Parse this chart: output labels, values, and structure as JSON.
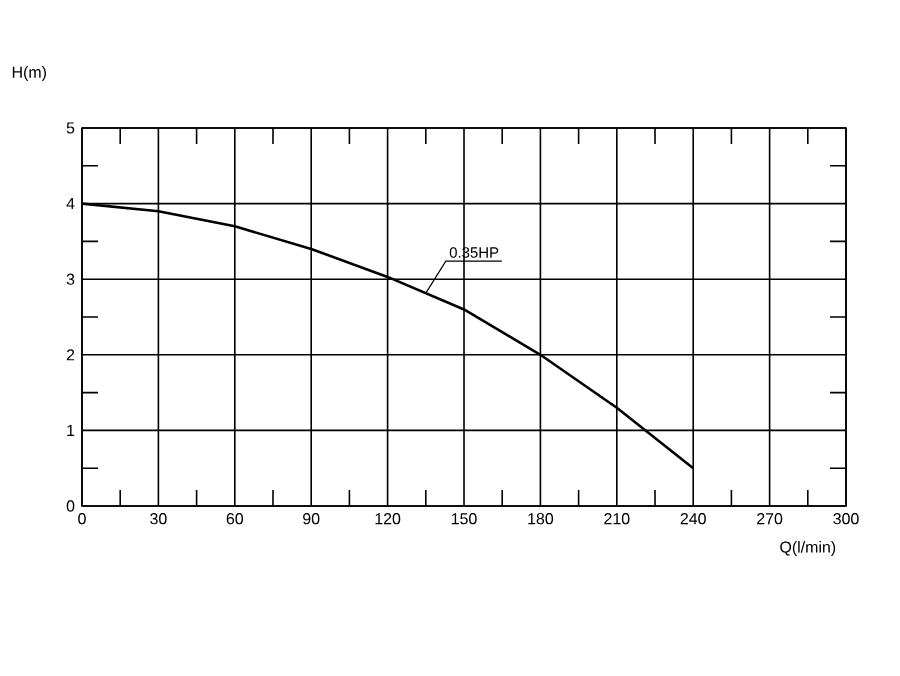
{
  "chart_data": {
    "type": "line",
    "xlabel": "Q(l/min)",
    "ylabel": "H(m)",
    "x": [
      0,
      30,
      60,
      90,
      120,
      150,
      180,
      210,
      240
    ],
    "series": [
      {
        "name": "0.35HP",
        "color": "#000000",
        "values": [
          4.0,
          3.9,
          3.7,
          3.4,
          3.03,
          2.6,
          2.0,
          1.3,
          0.5
        ]
      }
    ],
    "xlim": [
      0,
      300
    ],
    "ylim": [
      0,
      5
    ],
    "xticks": [
      0,
      {
        "value": 15,
        "label": null
      },
      30,
      {
        "value": 45,
        "label": null
      },
      60,
      {
        "value": 75,
        "label": null
      },
      90,
      {
        "value": 105,
        "label": null
      },
      120,
      {
        "value": 135,
        "label": null
      },
      150,
      {
        "value": 165,
        "label": null
      },
      180,
      {
        "value": 195,
        "label": null
      },
      210,
      {
        "value": 225,
        "label": null
      },
      240,
      {
        "value": 255,
        "label": null
      },
      270,
      {
        "value": 285,
        "label": null
      },
      300
    ],
    "yticks": [
      0,
      {
        "value": 0.5,
        "label": null
      },
      1,
      {
        "value": 1.5,
        "label": null
      },
      2,
      {
        "value": 2.5,
        "label": null
      },
      3,
      {
        "value": 3.5,
        "label": null
      },
      4,
      {
        "value": 4.5,
        "label": null
      },
      5
    ],
    "grid": true,
    "legend": false,
    "marker": "none",
    "line_style": "solid"
  }
}
